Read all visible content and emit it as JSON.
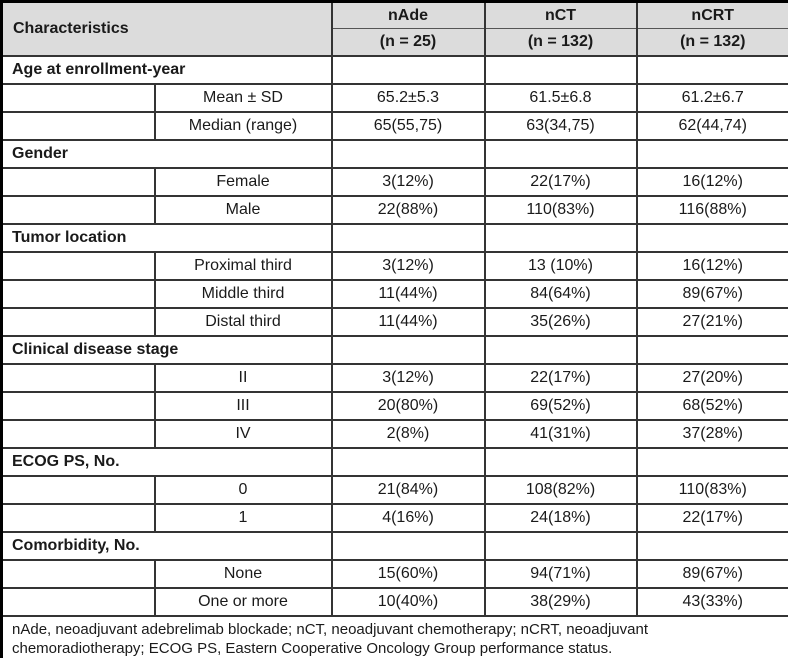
{
  "table": {
    "header": {
      "characteristics_label": "Characteristics",
      "columns": [
        {
          "name": "nAde",
          "n": "(n = 25)"
        },
        {
          "name": "nCT",
          "n": "(n = 132)"
        },
        {
          "name": "nCRT",
          "n": "(n = 132)"
        }
      ]
    },
    "sections": [
      {
        "title": "Age at enrollment-year",
        "rows": [
          {
            "label": "Mean ± SD",
            "values": [
              "65.2±5.3",
              "61.5±6.8",
              "61.2±6.7"
            ]
          },
          {
            "label": "Median (range)",
            "values": [
              "65(55,75)",
              "63(34,75)",
              "62(44,74)"
            ]
          }
        ]
      },
      {
        "title": "Gender",
        "rows": [
          {
            "label": "Female",
            "values": [
              "3(12%)",
              "22(17%)",
              "16(12%)"
            ]
          },
          {
            "label": "Male",
            "values": [
              "22(88%)",
              "110(83%)",
              "116(88%)"
            ]
          }
        ]
      },
      {
        "title": "Tumor location",
        "rows": [
          {
            "label": "Proximal third",
            "values": [
              "3(12%)",
              "13 (10%)",
              "16(12%)"
            ]
          },
          {
            "label": "Middle third",
            "values": [
              "11(44%)",
              "84(64%)",
              "89(67%)"
            ]
          },
          {
            "label": "Distal third",
            "values": [
              "11(44%)",
              "35(26%)",
              "27(21%)"
            ]
          }
        ]
      },
      {
        "title": "Clinical disease stage",
        "rows": [
          {
            "label": "II",
            "values": [
              "3(12%)",
              "22(17%)",
              "27(20%)"
            ]
          },
          {
            "label": "III",
            "values": [
              "20(80%)",
              "69(52%)",
              "68(52%)"
            ]
          },
          {
            "label": "IV",
            "values": [
              "2(8%)",
              "41(31%)",
              "37(28%)"
            ]
          }
        ]
      },
      {
        "title": "ECOG PS, No.",
        "rows": [
          {
            "label": "0",
            "values": [
              "21(84%)",
              "108(82%)",
              "110(83%)"
            ]
          },
          {
            "label": "1",
            "values": [
              "4(16%)",
              "24(18%)",
              "22(17%)"
            ]
          }
        ]
      },
      {
        "title": "Comorbidity, No.",
        "rows": [
          {
            "label": "None",
            "values": [
              "15(60%)",
              "94(71%)",
              "89(67%)"
            ]
          },
          {
            "label": "One or more",
            "values": [
              "10(40%)",
              "38(29%)",
              "43(33%)"
            ]
          }
        ]
      }
    ],
    "footnote": "nAde, neoadjuvant adebrelimab blockade; nCT, neoadjuvant chemotherapy; nCRT, neoadjuvant chemoradiotherapy; ECOG PS, Eastern Cooperative Oncology Group performance status.",
    "colors": {
      "header_bg": "#dcdcdc",
      "border": "#343434",
      "row_bg": "#ffffff"
    }
  }
}
